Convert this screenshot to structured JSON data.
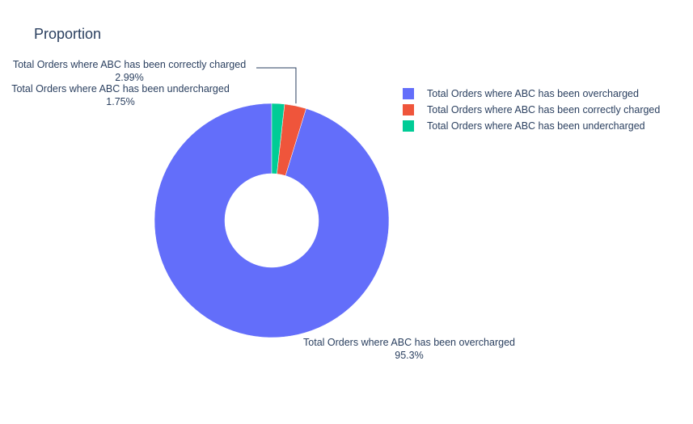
{
  "chart_data": {
    "type": "pie",
    "hole": true,
    "title": "Proportion",
    "slices": [
      {
        "label": "Total Orders where ABC has been overcharged",
        "percent_text": "95.3%",
        "value": 95.26,
        "color": "#636efa"
      },
      {
        "label": "Total Orders where ABC has been correctly charged",
        "percent_text": "2.99%",
        "value": 2.99,
        "color": "#ef553b"
      },
      {
        "label": "Total Orders where ABC has been undercharged",
        "percent_text": "1.75%",
        "value": 1.75,
        "color": "#00cc96"
      }
    ],
    "legend": {
      "placement": "top-right",
      "items": [
        "Total Orders where ABC has been overcharged",
        "Total Orders where ABC has been correctly charged",
        "Total Orders where ABC has been undercharged"
      ]
    }
  }
}
